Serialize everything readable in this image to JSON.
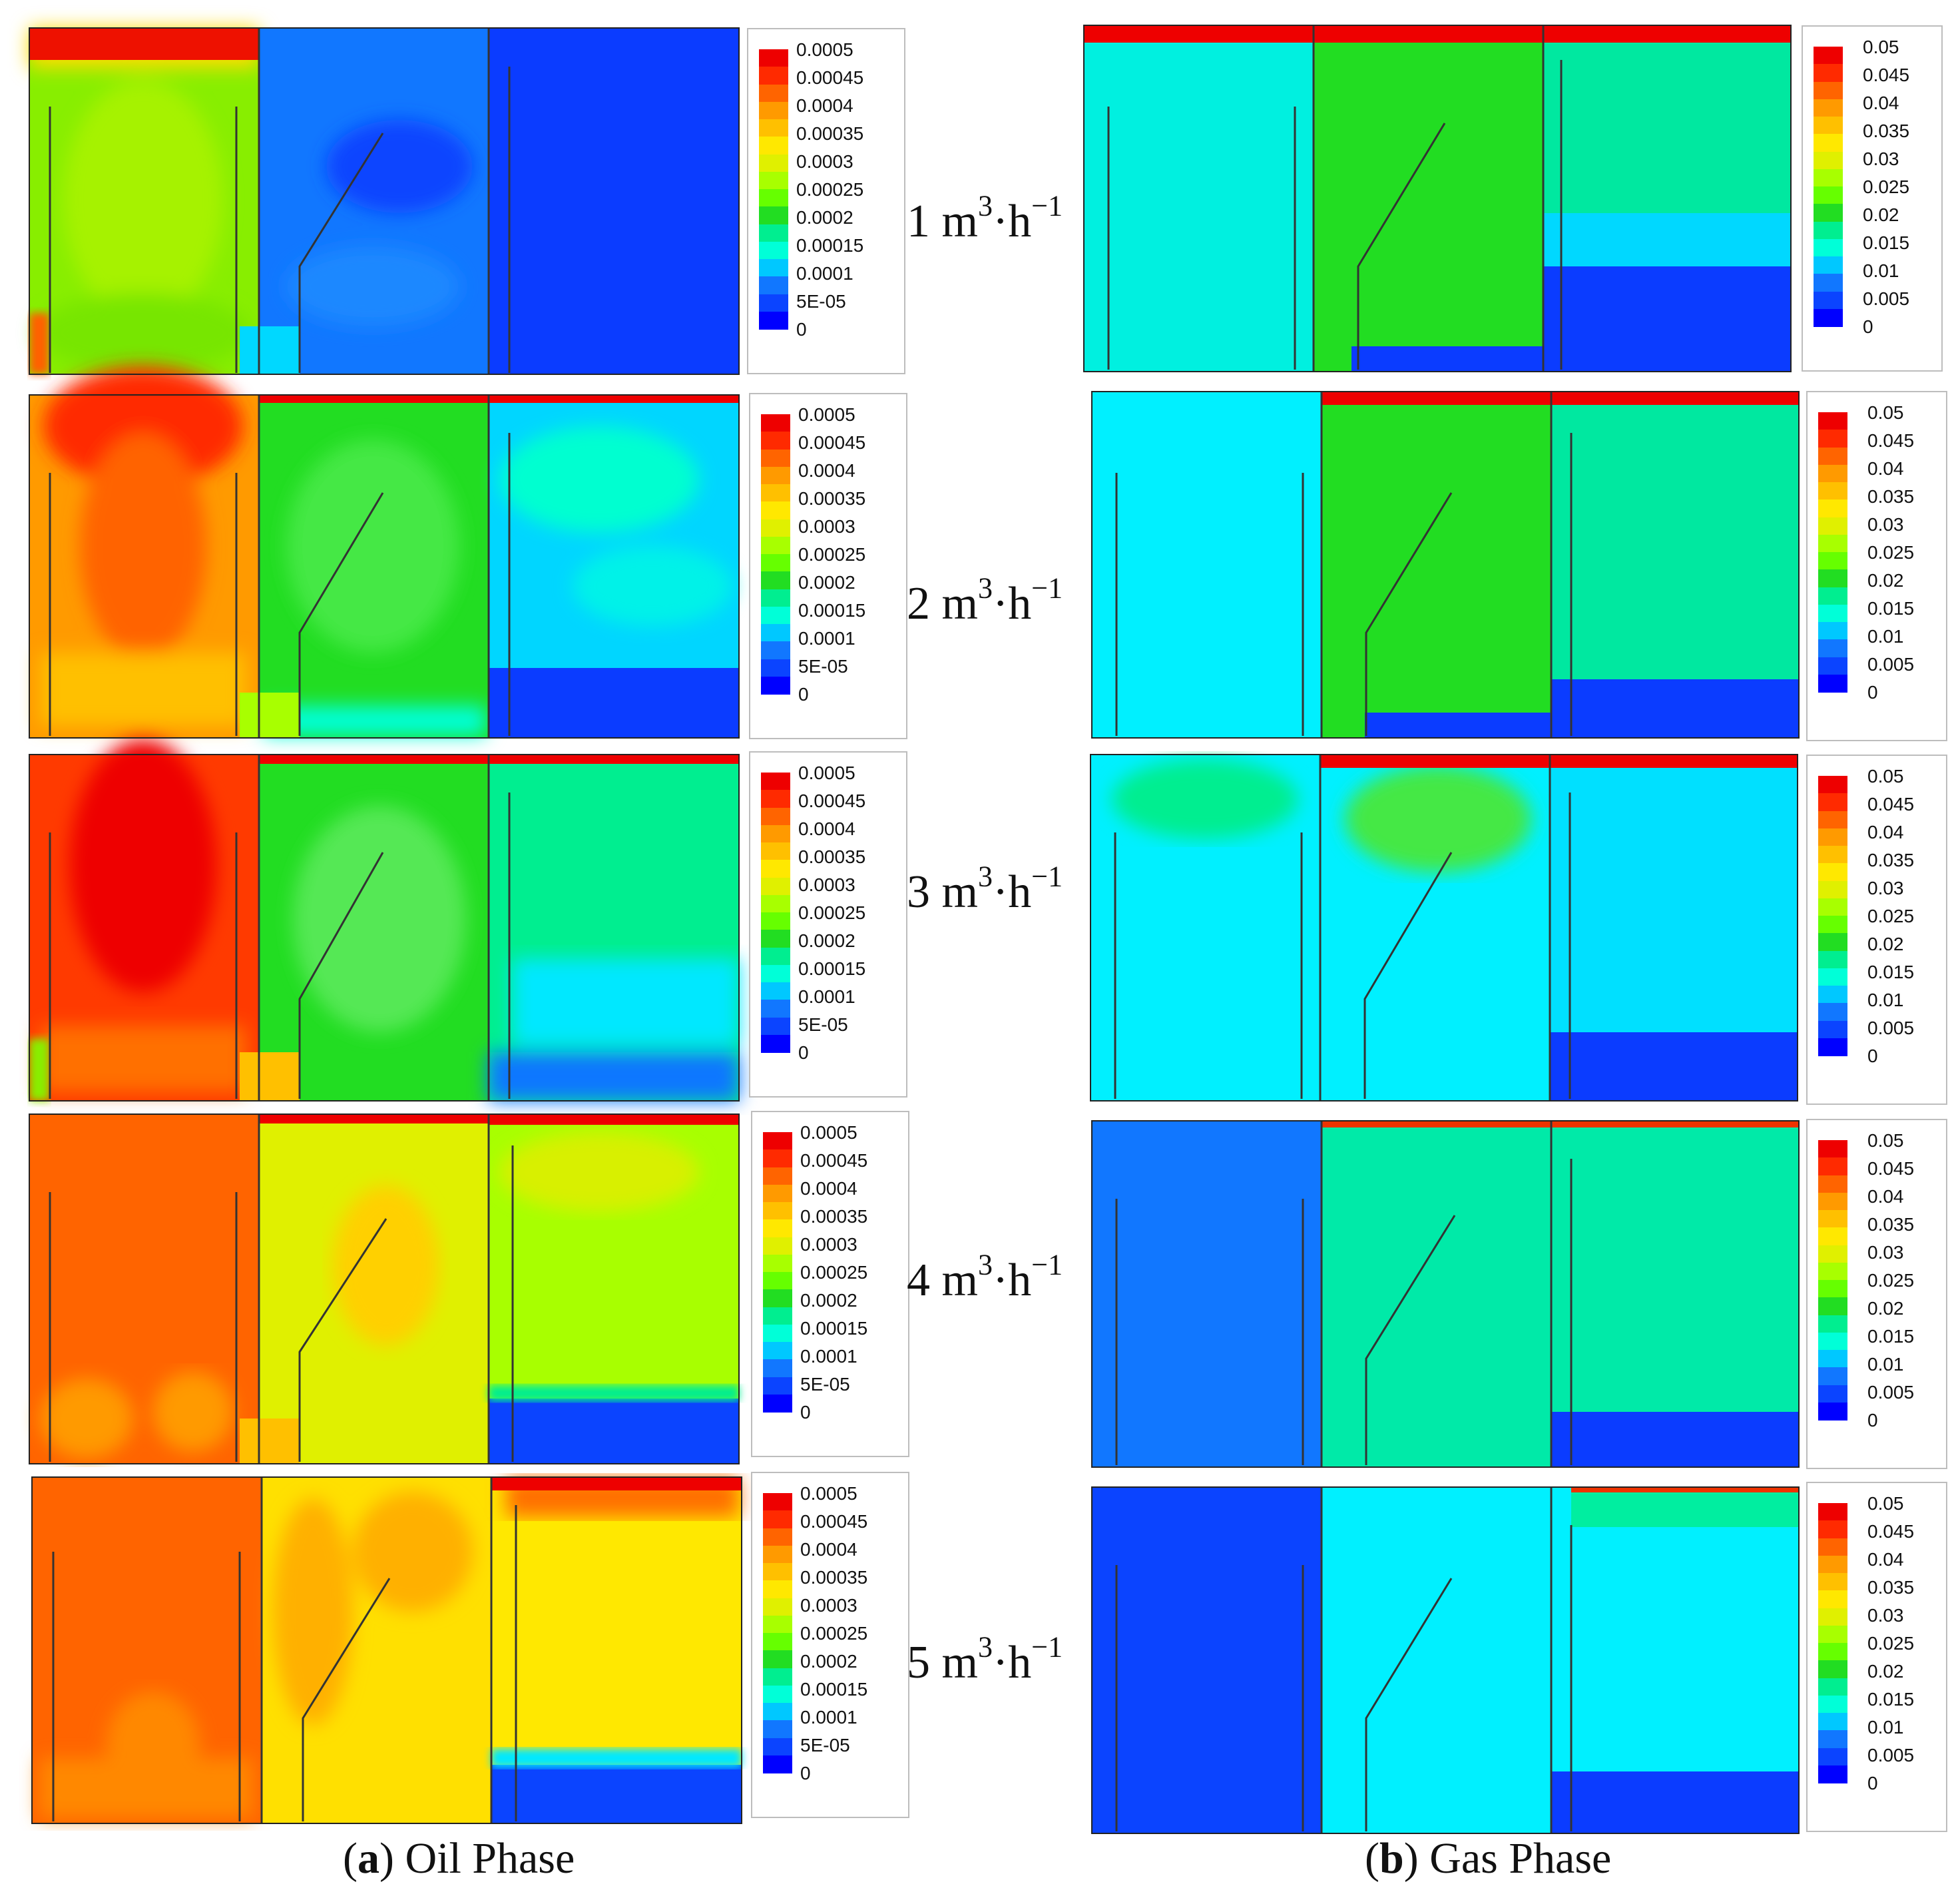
{
  "captions": {
    "oil": {
      "letter": "a",
      "text": " Oil Phase"
    },
    "gas": {
      "letter": "b",
      "text": " Gas Phase"
    }
  },
  "flow_rates": [
    {
      "num": "1",
      "unit_m": " m",
      "exp1": "3",
      "dot_h": "·h",
      "exp2": "−1"
    },
    {
      "num": "2",
      "unit_m": " m",
      "exp1": "3",
      "dot_h": "·h",
      "exp2": "−1"
    },
    {
      "num": "3",
      "unit_m": " m",
      "exp1": "3",
      "dot_h": "·h",
      "exp2": "−1"
    },
    {
      "num": "4",
      "unit_m": " m",
      "exp1": "3",
      "dot_h": "·h",
      "exp2": "−1"
    },
    {
      "num": "5",
      "unit_m": " m",
      "exp1": "3",
      "dot_h": "·h",
      "exp2": "−1"
    }
  ],
  "oil_legend_ticks": [
    "0.0005",
    "0.00045",
    "0.0004",
    "0.00035",
    "0.0003",
    "0.00025",
    "0.0002",
    "0.00015",
    "0.0001",
    "5E-05",
    "0"
  ],
  "gas_legend_ticks": [
    "0.05",
    "0.045",
    "0.04",
    "0.035",
    "0.03",
    "0.025",
    "0.02",
    "0.015",
    "0.01",
    "0.005",
    "0"
  ],
  "legend_colors": [
    "#0000ff",
    "#0b44ff",
    "#1177ff",
    "#00c8ff",
    "#00ffd8",
    "#00ee90",
    "#22dd22",
    "#66ff00",
    "#a8ff00",
    "#e0f000",
    "#ffe800",
    "#ffc000",
    "#ff9a00",
    "#ff6400",
    "#ff2a00",
    "#ee0000"
  ]
}
